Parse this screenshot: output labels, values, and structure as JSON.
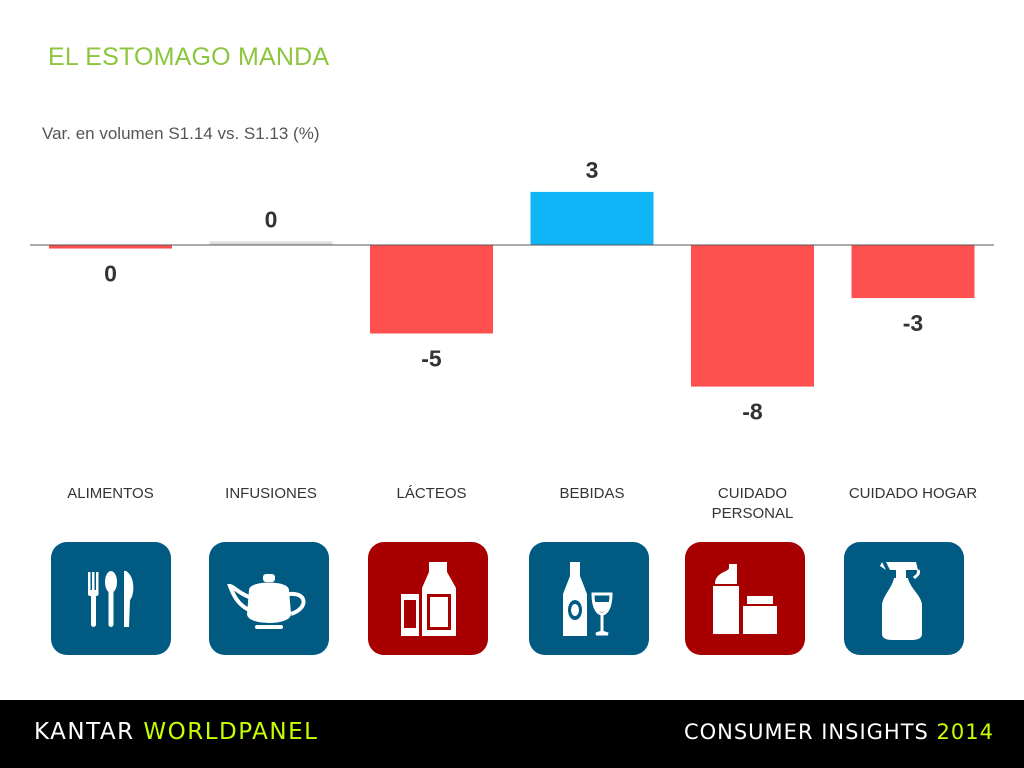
{
  "title": "EL ESTOMAGO MANDA",
  "subtitle": "Var. en volumen S1.14 vs. S1.13 (%)",
  "colors": {
    "positive": "#0fb4f6",
    "negative": "#ff5050",
    "neutral": "#dcdcdc",
    "title": "#8cc63f",
    "tile_blue": "#005a82",
    "tile_red": "#a80000",
    "footer_accent": "#c6ff00"
  },
  "chart_data": {
    "type": "bar",
    "title": "EL ESTOMAGO MANDA",
    "subtitle": "Var. en volumen S1.14 vs. S1.13 (%)",
    "categories": [
      "ALIMENTOS",
      "INFUSIONES",
      "LÁCTEOS",
      "BEBIDAS",
      "CUIDADO PERSONAL",
      "CUIDADO HOGAR"
    ],
    "values": [
      -0.2,
      0.2,
      -5,
      3,
      -8,
      -3
    ],
    "data_labels": [
      "0",
      "0",
      "-5",
      "3",
      "-8",
      "-3"
    ],
    "ylim": [
      -8,
      3
    ],
    "grid": false,
    "legend": "none"
  },
  "categories_display": [
    {
      "lines": [
        "ALIMENTOS"
      ],
      "icon": "cutlery-icon",
      "tile_color": "blue"
    },
    {
      "lines": [
        "INFUSIONES"
      ],
      "icon": "teapot-icon",
      "tile_color": "blue"
    },
    {
      "lines": [
        "LÁCTEOS"
      ],
      "icon": "milk-bottle-icon",
      "tile_color": "red"
    },
    {
      "lines": [
        "BEBIDAS"
      ],
      "icon": "wine-bottle-icon",
      "tile_color": "blue"
    },
    {
      "lines": [
        "CUIDADO",
        "PERSONAL"
      ],
      "icon": "personal-care-icon",
      "tile_color": "red"
    },
    {
      "lines": [
        "CUIDADO HOGAR"
      ],
      "icon": "spray-bottle-icon",
      "tile_color": "blue"
    }
  ],
  "footer": {
    "brand_part1": "KANTAR ",
    "brand_part2": "WORLDPANEL",
    "tagline": "CONSUMER INSIGHTS ",
    "year": "2014"
  }
}
